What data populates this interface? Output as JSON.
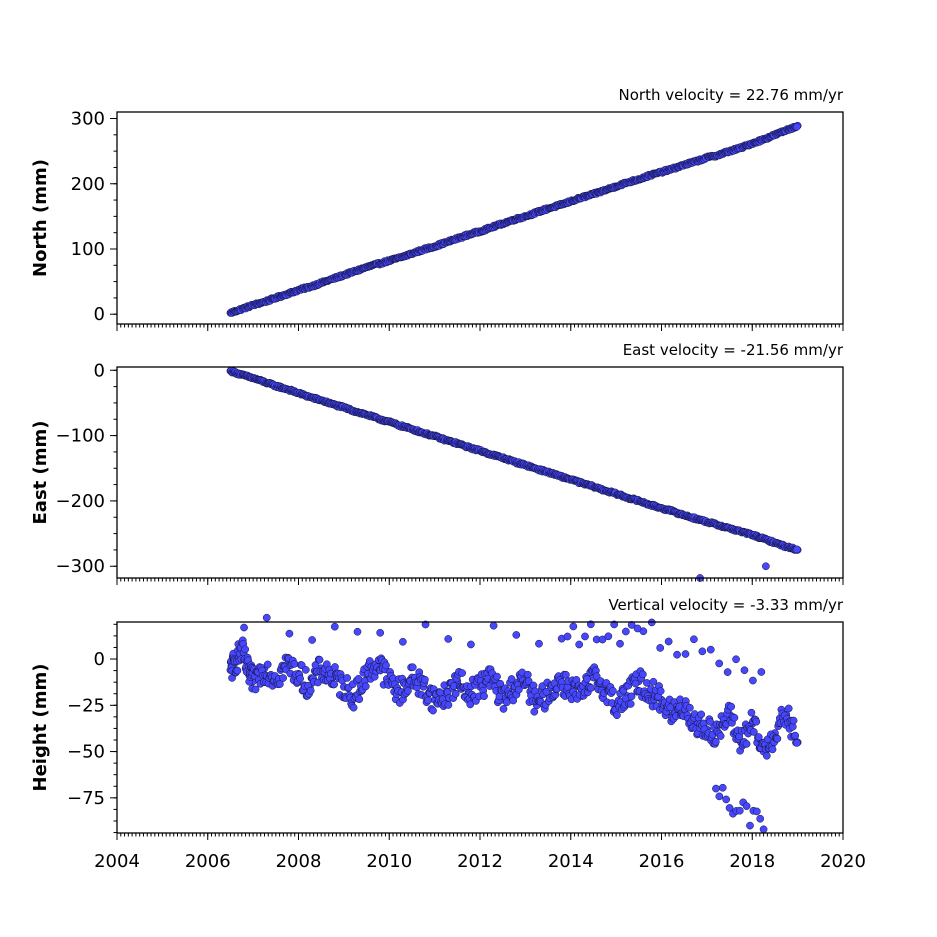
{
  "chart_data": [
    {
      "type": "scatter",
      "title": "North velocity = 22.76 mm/yr",
      "ylabel": "North (mm)",
      "xlim": [
        2004,
        2020
      ],
      "ylim": [
        -15,
        310
      ],
      "yticks": [
        0,
        100,
        200,
        300
      ],
      "ytick_labels": [
        "0",
        "100",
        "200",
        "300"
      ],
      "series": [
        {
          "color": "#4747ff",
          "x": [
            2006.5,
            2006.75,
            2007.0,
            2007.25,
            2007.5,
            2007.75,
            2008.0,
            2008.25,
            2008.5,
            2008.75,
            2009.0,
            2009.25,
            2009.5,
            2009.75,
            2010.0,
            2010.25,
            2010.5,
            2010.75,
            2011.0,
            2011.25,
            2011.5,
            2011.75,
            2012.0,
            2012.25,
            2012.5,
            2012.75,
            2013.0,
            2013.25,
            2013.5,
            2013.75,
            2014.0,
            2014.25,
            2014.5,
            2014.75,
            2015.0,
            2015.25,
            2015.5,
            2015.75,
            2016.0,
            2016.25,
            2016.5,
            2016.75,
            2017.0,
            2017.25,
            2017.5,
            2017.75,
            2018.0,
            2018.25,
            2018.5,
            2018.75,
            2019.0
          ],
          "y": [
            2,
            8,
            14,
            19,
            25,
            31,
            37,
            42,
            48,
            54,
            60,
            66,
            72,
            77,
            82,
            87,
            93,
            99,
            104,
            110,
            116,
            122,
            127,
            133,
            139,
            145,
            150,
            156,
            162,
            167,
            173,
            179,
            184,
            190,
            196,
            202,
            207,
            213,
            218,
            223,
            229,
            234,
            240,
            244,
            250,
            255,
            262,
            268,
            275,
            282,
            289
          ]
        }
      ]
    },
    {
      "type": "scatter",
      "title": "East velocity = -21.56 mm/yr",
      "ylabel": "East (mm)",
      "xlim": [
        2004,
        2020
      ],
      "ylim": [
        -318,
        5
      ],
      "yticks": [
        0,
        -100,
        -200,
        -300
      ],
      "ytick_labels": [
        "0",
        "−100",
        "−200",
        "−300"
      ],
      "series": [
        {
          "color": "#4747ff",
          "x": [
            2006.5,
            2006.75,
            2007.0,
            2007.25,
            2007.5,
            2007.75,
            2008.0,
            2008.25,
            2008.5,
            2008.75,
            2009.0,
            2009.25,
            2009.5,
            2009.75,
            2010.0,
            2010.25,
            2010.5,
            2010.75,
            2011.0,
            2011.25,
            2011.5,
            2011.75,
            2012.0,
            2012.25,
            2012.5,
            2012.75,
            2013.0,
            2013.25,
            2013.5,
            2013.75,
            2014.0,
            2014.25,
            2014.5,
            2014.75,
            2015.0,
            2015.25,
            2015.5,
            2015.75,
            2016.0,
            2016.25,
            2016.5,
            2016.75,
            2017.0,
            2017.25,
            2017.5,
            2017.75,
            2018.0,
            2018.25,
            2018.5,
            2018.75,
            2019.0,
            2018.3,
            2016.85
          ],
          "y": [
            -1,
            -7,
            -12,
            -18,
            -24,
            -29,
            -35,
            -41,
            -46,
            -52,
            -57,
            -63,
            -68,
            -74,
            -79,
            -85,
            -90,
            -96,
            -101,
            -107,
            -112,
            -118,
            -123,
            -129,
            -134,
            -140,
            -145,
            -151,
            -156,
            -162,
            -167,
            -173,
            -178,
            -184,
            -189,
            -195,
            -200,
            -206,
            -211,
            -216,
            -222,
            -227,
            -232,
            -237,
            -242,
            -247,
            -252,
            -258,
            -264,
            -270,
            -275,
            -300,
            -318
          ]
        }
      ]
    },
    {
      "type": "scatter",
      "title": "Vertical velocity = -3.33 mm/yr",
      "ylabel": "Height (mm)",
      "xlabel": "",
      "xlim": [
        2004,
        2020
      ],
      "ylim": [
        -94,
        20
      ],
      "xticks": [
        2004,
        2006,
        2008,
        2010,
        2012,
        2014,
        2016,
        2018,
        2020
      ],
      "xtick_labels": [
        "2004",
        "2006",
        "2008",
        "2010",
        "2012",
        "2014",
        "2016",
        "2018",
        "2020"
      ],
      "yticks": [
        0,
        -25,
        -50,
        -75
      ],
      "ytick_labels": [
        "0",
        "−25",
        "−50",
        "−75"
      ],
      "series": [
        {
          "color": "#4747ff",
          "x": [
            2006.5,
            2006.6,
            2006.75,
            2006.9,
            2007.0,
            2007.25,
            2007.5,
            2007.75,
            2008.0,
            2008.25,
            2008.5,
            2008.75,
            2009.0,
            2009.25,
            2009.5,
            2009.75,
            2010.0,
            2010.25,
            2010.5,
            2010.75,
            2011.0,
            2011.25,
            2011.5,
            2011.75,
            2012.0,
            2012.25,
            2012.5,
            2012.75,
            2013.0,
            2013.25,
            2013.5,
            2013.75,
            2014.0,
            2014.25,
            2014.5,
            2014.75,
            2015.0,
            2015.25,
            2015.5,
            2015.75,
            2016.0,
            2016.25,
            2016.5,
            2016.75,
            2017.0,
            2017.25,
            2017.5,
            2017.75,
            2018.0,
            2018.25,
            2018.5,
            2018.75,
            2019.0,
            2006.8,
            2013.8,
            2015.6,
            2018.2,
            2017.2,
            2018.25
          ],
          "y": [
            -6,
            -2,
            5,
            -8,
            -12,
            -5,
            -10,
            -3,
            -8,
            -15,
            -5,
            -10,
            -15,
            -20,
            -8,
            -2,
            -12,
            -18,
            -10,
            -15,
            -22,
            -20,
            -12,
            -18,
            -15,
            -10,
            -22,
            -15,
            -12,
            -25,
            -18,
            -12,
            -15,
            -20,
            -10,
            -15,
            -25,
            -20,
            -12,
            -18,
            -22,
            -30,
            -25,
            -35,
            -38,
            -40,
            -30,
            -45,
            -35,
            -50,
            -40,
            -30,
            -45,
            17,
            11,
            15,
            -7,
            -70,
            -92
          ]
        }
      ]
    }
  ]
}
